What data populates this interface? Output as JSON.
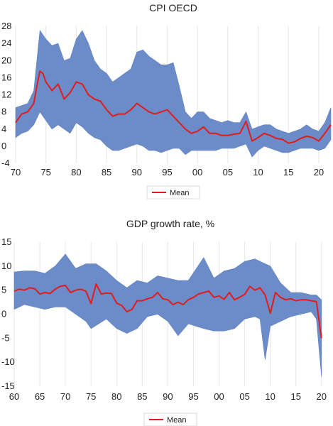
{
  "chart_data": [
    {
      "id": "cpi",
      "type": "area",
      "title": "CPI OECD",
      "xlabel": "",
      "ylabel": "",
      "x_range": [
        1970,
        2022
      ],
      "ylim": [
        -4,
        28
      ],
      "y_ticks": [
        -4,
        0,
        4,
        8,
        12,
        16,
        20,
        24,
        28
      ],
      "x_ticks": [
        1970,
        1975,
        1980,
        1985,
        1990,
        1995,
        2000,
        2005,
        2010,
        2015,
        2020
      ],
      "x_tick_labels": [
        "70",
        "75",
        "80",
        "85",
        "90",
        "95",
        "00",
        "05",
        "10",
        "15",
        "20"
      ],
      "grid": "vertical",
      "legend": {
        "position": "bottom-center",
        "entries": [
          "Mean"
        ]
      },
      "colors": {
        "band": "#6c8cc9",
        "mean": "#e21b1b"
      },
      "series": [
        {
          "name": "Mean",
          "x": [
            1970,
            1971,
            1972,
            1973,
            1973.5,
            1974,
            1974.5,
            1975,
            1976,
            1977,
            1978,
            1979,
            1980,
            1981,
            1982,
            1983,
            1984,
            1985,
            1986,
            1987,
            1988,
            1989,
            1990,
            1991,
            1992,
            1993,
            1994,
            1995,
            1996,
            1997,
            1998,
            1999,
            2000,
            2001,
            2002,
            2003,
            2004,
            2005,
            2006,
            2007,
            2008,
            2009,
            2010,
            2011,
            2012,
            2013,
            2014,
            2015,
            2016,
            2017,
            2018,
            2019,
            2020,
            2021,
            2022
          ],
          "values": [
            5.5,
            7.5,
            8,
            10,
            14,
            17.5,
            17,
            15,
            13,
            14.5,
            11,
            12.5,
            15,
            14.5,
            12,
            11,
            10.5,
            8.5,
            7,
            7.5,
            7.5,
            8.5,
            10,
            9,
            8,
            7.5,
            8,
            8.5,
            7,
            5.5,
            4,
            3,
            3.5,
            4.5,
            3,
            3,
            2.5,
            2.5,
            2.8,
            3,
            5.8,
            1.2,
            2,
            3,
            2.5,
            1.8,
            1.6,
            0.7,
            1,
            1.8,
            2.3,
            2,
            1.2,
            3,
            5
          ]
        },
        {
          "name": "Upper bound",
          "x": [
            1970,
            1971,
            1972,
            1973,
            1974,
            1975,
            1976,
            1977,
            1978,
            1979,
            1980,
            1981,
            1982,
            1983,
            1984,
            1985,
            1986,
            1987,
            1988,
            1989,
            1990,
            1991,
            1992,
            1993,
            1994,
            1995,
            1996,
            1997,
            1998,
            1999,
            2000,
            2001,
            2002,
            2003,
            2004,
            2005,
            2006,
            2007,
            2008,
            2009,
            2010,
            2011,
            2012,
            2013,
            2014,
            2015,
            2016,
            2017,
            2018,
            2019,
            2020,
            2021,
            2022
          ],
          "values": [
            9,
            9.5,
            10,
            13,
            27,
            25,
            23.5,
            24,
            20,
            20.5,
            25,
            27,
            24,
            20,
            18,
            17,
            15,
            16,
            17,
            18,
            22,
            22.5,
            21,
            20,
            19,
            19,
            19.5,
            14,
            8,
            6.5,
            8,
            8,
            6.5,
            6,
            5.5,
            6,
            5.5,
            5.5,
            8,
            4,
            4.5,
            5,
            5,
            4,
            3.5,
            3,
            3.5,
            4,
            5,
            4,
            3.5,
            5.5,
            9
          ]
        },
        {
          "name": "Lower bound",
          "x": [
            1970,
            1971,
            1972,
            1973,
            1974,
            1975,
            1976,
            1977,
            1978,
            1979,
            1980,
            1981,
            1982,
            1983,
            1984,
            1985,
            1986,
            1987,
            1988,
            1989,
            1990,
            1991,
            1992,
            1993,
            1994,
            1995,
            1996,
            1997,
            1998,
            1999,
            2000,
            2001,
            2002,
            2003,
            2004,
            2005,
            2006,
            2007,
            2008,
            2009,
            2010,
            2011,
            2012,
            2013,
            2014,
            2015,
            2016,
            2017,
            2018,
            2019,
            2020,
            2021,
            2022
          ],
          "values": [
            2,
            3,
            3.5,
            5,
            8,
            6,
            4,
            5,
            4,
            3,
            5.5,
            4.5,
            3,
            2,
            1.5,
            0,
            -1,
            -1,
            -0.5,
            0,
            0.5,
            0,
            -1,
            -1,
            -1.5,
            -1,
            -0.5,
            -0.5,
            -2,
            -1,
            -1,
            -1,
            -1,
            -1,
            -0.5,
            -0.5,
            -0.5,
            0,
            0.5,
            -2.5,
            -1,
            0,
            -0.5,
            -1,
            -1.5,
            -1.5,
            -1,
            -0.5,
            -0.5,
            -0.5,
            -1,
            -0.5,
            1.5
          ]
        }
      ]
    },
    {
      "id": "gdp",
      "type": "area",
      "title": "GDP growth rate, %",
      "xlabel": "",
      "ylabel": "",
      "x_range": [
        1960,
        2021
      ],
      "ylim": [
        -15,
        15
      ],
      "y_ticks": [
        -15,
        -10,
        -5,
        0,
        5,
        10,
        15
      ],
      "x_ticks": [
        1960,
        1965,
        1970,
        1975,
        1980,
        1985,
        1990,
        1995,
        2000,
        2005,
        2010,
        2015,
        2020
      ],
      "x_tick_labels": [
        "60",
        "65",
        "70",
        "75",
        "80",
        "85",
        "90",
        "95",
        "00",
        "05",
        "10",
        "15",
        "20"
      ],
      "grid": "vertical",
      "legend": {
        "position": "bottom-center",
        "entries": [
          "Mean"
        ]
      },
      "colors": {
        "band": "#6c8cc9",
        "mean": "#e21b1b"
      },
      "series": [
        {
          "name": "Mean",
          "x": [
            1960,
            1961,
            1962,
            1963,
            1964,
            1965,
            1966,
            1967,
            1968,
            1969,
            1970,
            1971,
            1972,
            1973,
            1974,
            1975,
            1976,
            1977,
            1978,
            1979,
            1980,
            1981,
            1982,
            1983,
            1984,
            1985,
            1986,
            1987,
            1988,
            1989,
            1990,
            1991,
            1992,
            1993,
            1994,
            1995,
            1996,
            1997,
            1998,
            1999,
            2000,
            2001,
            2002,
            2003,
            2004,
            2005,
            2006,
            2007,
            2008,
            2009,
            2010,
            2011,
            2012,
            2013,
            2014,
            2015,
            2016,
            2017,
            2018,
            2019,
            2020
          ],
          "values": [
            4.8,
            5.2,
            5,
            5.5,
            5.3,
            4.2,
            4.5,
            4.3,
            5.2,
            5.8,
            6,
            4.5,
            5,
            5.2,
            4.8,
            2.2,
            6.3,
            4.2,
            4.4,
            4.3,
            2.3,
            1.8,
            0.5,
            1,
            2.8,
            2.8,
            3.2,
            3.5,
            4.5,
            3.2,
            3,
            2,
            2.5,
            2,
            3,
            3.5,
            4.2,
            4.5,
            4.8,
            3.5,
            3.8,
            3.1,
            4.5,
            3,
            3.5,
            4.1,
            5.8,
            5,
            5.5,
            4,
            0.2,
            4.5,
            3.5,
            3,
            3.2,
            2.8,
            3,
            3,
            2.8,
            2.6,
            -5
          ]
        },
        {
          "name": "Upper bound",
          "x": [
            1960,
            1962,
            1964,
            1966,
            1968,
            1970,
            1972,
            1974,
            1976,
            1978,
            1980,
            1982,
            1984,
            1986,
            1988,
            1990,
            1992,
            1994,
            1997,
            1999,
            2001,
            2003,
            2005,
            2007,
            2008,
            2010,
            2012,
            2014,
            2016,
            2018,
            2019,
            2020
          ],
          "values": [
            8.8,
            9,
            9,
            8.5,
            10,
            12.5,
            9.5,
            10.5,
            10.5,
            9,
            7,
            5.5,
            7,
            6.5,
            8,
            7.5,
            7,
            7,
            11.8,
            7.5,
            9,
            9.5,
            11,
            11.5,
            11,
            10,
            6.5,
            4.5,
            4.5,
            4,
            4,
            3
          ]
        },
        {
          "name": "Lower bound",
          "x": [
            1960,
            1962,
            1964,
            1966,
            1968,
            1970,
            1972,
            1974,
            1975,
            1978,
            1980,
            1982,
            1984,
            1986,
            1988,
            1990,
            1992,
            1994,
            1997,
            1999,
            2001,
            2003,
            2005,
            2007,
            2008,
            2009,
            2010,
            2012,
            2014,
            2016,
            2018,
            2019,
            2020
          ],
          "values": [
            1,
            2,
            1.5,
            1,
            1.5,
            1.5,
            0,
            -1.5,
            -3,
            -1,
            -3,
            -4,
            -3,
            -0.5,
            0,
            -1.5,
            -4.5,
            -2,
            -3,
            -3.5,
            -3.5,
            -3,
            -1,
            -0.5,
            -1,
            -9.5,
            -2.5,
            -1.5,
            -0.5,
            0,
            0.5,
            -1,
            -13
          ]
        }
      ]
    }
  ]
}
